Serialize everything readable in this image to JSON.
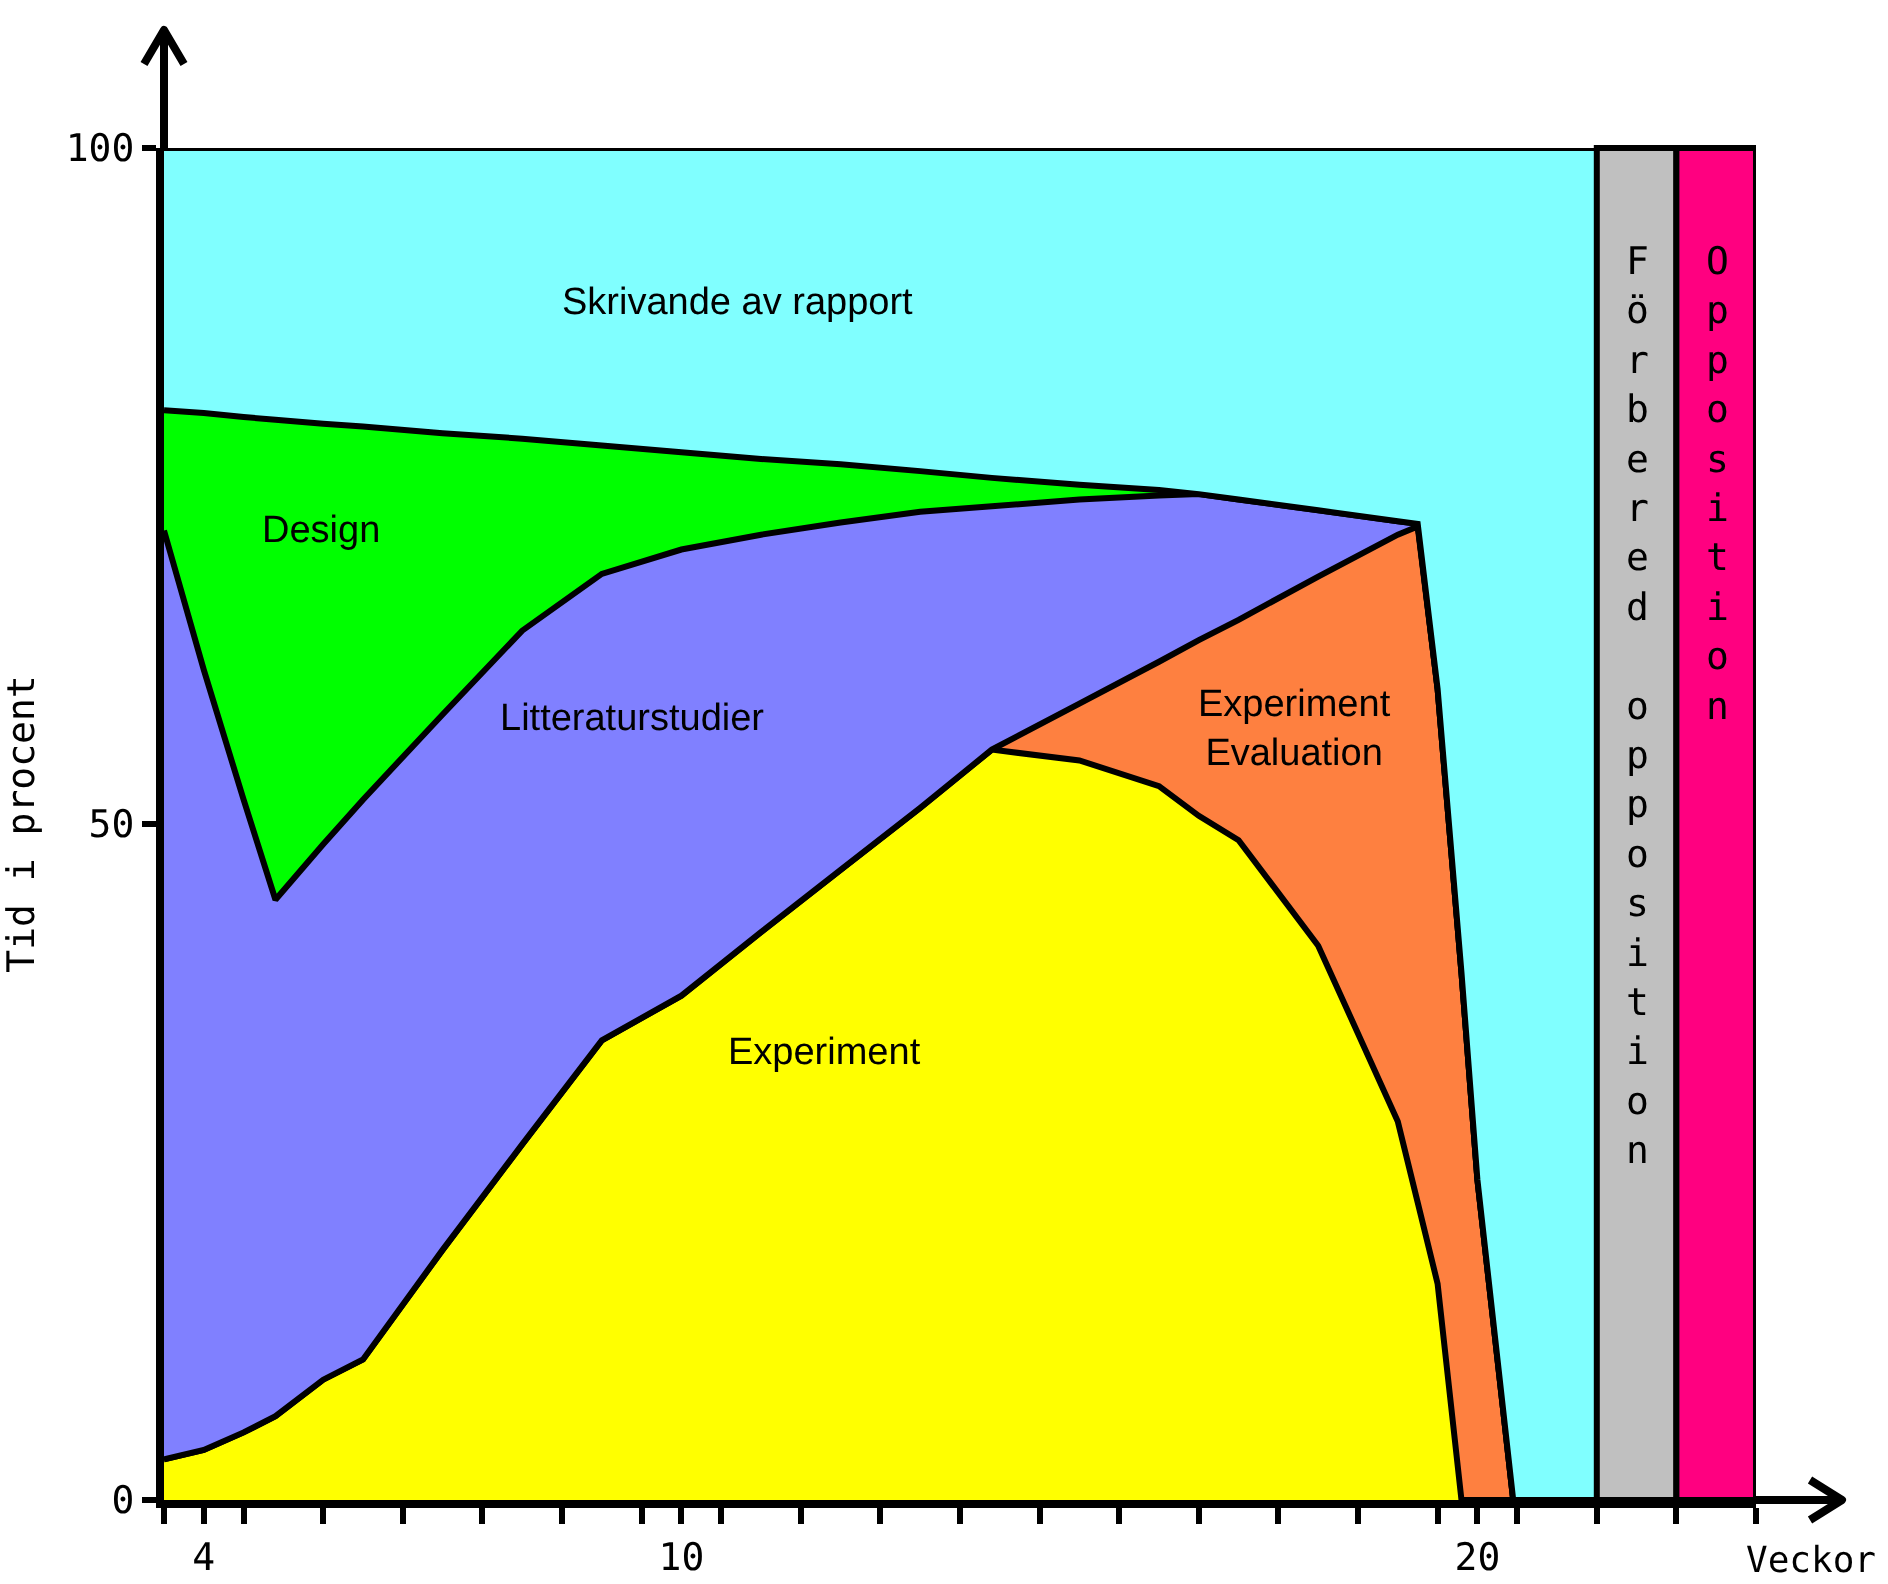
{
  "chart_data": {
    "type": "area",
    "stacked": true,
    "xlabel": "Veckor",
    "ylabel": "Tid i procent",
    "xlim": [
      3.5,
      23.5
    ],
    "ylim": [
      0,
      100
    ],
    "xticks": [
      {
        "value": 3.5,
        "label": null
      },
      4,
      {
        "value": 4.5,
        "label": null
      },
      {
        "value": 5.5,
        "label": null
      },
      {
        "value": 6.5,
        "label": null
      },
      {
        "value": 7.5,
        "label": null
      },
      {
        "value": 8.5,
        "label": null
      },
      {
        "value": 9.5,
        "label": null
      },
      10,
      {
        "value": 10.5,
        "label": null
      },
      {
        "value": 11.5,
        "label": null
      },
      {
        "value": 12.5,
        "label": null
      },
      {
        "value": 13.5,
        "label": null
      },
      {
        "value": 14.5,
        "label": null
      },
      {
        "value": 15.5,
        "label": null
      },
      {
        "value": 16.5,
        "label": null
      },
      {
        "value": 17.5,
        "label": null
      },
      {
        "value": 18.5,
        "label": null
      },
      {
        "value": 19.5,
        "label": null
      },
      20,
      {
        "value": 20.5,
        "label": null
      },
      {
        "value": 21.5,
        "label": null
      },
      {
        "value": 22.5,
        "label": null
      },
      {
        "value": 23.5,
        "label": null
      }
    ],
    "yticks": [
      0,
      50,
      100
    ],
    "x": [
      3.5,
      4,
      4.5,
      4.9,
      5.5,
      6,
      7,
      8,
      9,
      10,
      11,
      12,
      13,
      13.9,
      15,
      16,
      16.5,
      17,
      18,
      19,
      19.25,
      19.5,
      19.8,
      20,
      20.45,
      21.5
    ],
    "series": [
      {
        "color": "#ffff00",
        "values": [
          3,
          3.7,
          5,
          6.2,
          8.9,
          10.4,
          18.5,
          26.3,
          34,
          37.3,
          42,
          46.6,
          51.2,
          55.5,
          54.7,
          52.8,
          50.6,
          48.8,
          41,
          28,
          22,
          16,
          0,
          0,
          0,
          0
        ]
      },
      {
        "color": "#fe8040",
        "values": [
          0,
          0,
          0,
          0,
          0,
          0,
          0,
          0,
          0,
          0,
          0,
          0,
          0,
          0,
          4.2,
          9.2,
          13,
          16.3,
          27.3,
          43.4,
          50,
          44,
          39,
          23.7,
          0,
          0
        ]
      },
      {
        "color": "#8080ff",
        "values": [
          68.7,
          57.7,
          46.8,
          38.2,
          39.6,
          41.4,
          39.6,
          38,
          34.5,
          33,
          29.4,
          25.7,
          21.9,
          18,
          15.1,
          12.3,
          10.8,
          8.9,
          4.9,
          1,
          0.2,
          0,
          0,
          0,
          0,
          0
        ]
      },
      {
        "color": "#00ff00",
        "values": [
          8.9,
          19,
          28.3,
          35.5,
          31.1,
          27.6,
          20.8,
          14.2,
          9.5,
          7.2,
          5.6,
          4.3,
          3,
          2.1,
          1.1,
          0.4,
          0,
          0,
          0,
          0,
          0,
          0,
          0,
          0,
          0,
          0
        ]
      },
      {
        "color": "#80ffff",
        "values": [
          19.4,
          19.6,
          19.9,
          20.1,
          20.4,
          20.6,
          21.1,
          21.5,
          22,
          22.5,
          23,
          23.4,
          23.9,
          24.4,
          24.9,
          25.3,
          25.6,
          26,
          26.8,
          27.6,
          27.8,
          40,
          61,
          76.3,
          100,
          100
        ]
      }
    ],
    "bands": [
      {
        "axis": "x",
        "from": 21.5,
        "to": 22.5,
        "label": "Förbered opposition",
        "color": "#c0c0c0"
      },
      {
        "axis": "x",
        "from": 22.5,
        "to": 23.5,
        "label": "Opposition",
        "color": "#ff0080"
      }
    ],
    "annotations": [
      "Skrivande av rapport",
      "Design",
      "Litteraturstudier",
      "Experiment",
      "Experiment\nEvaluation"
    ]
  }
}
